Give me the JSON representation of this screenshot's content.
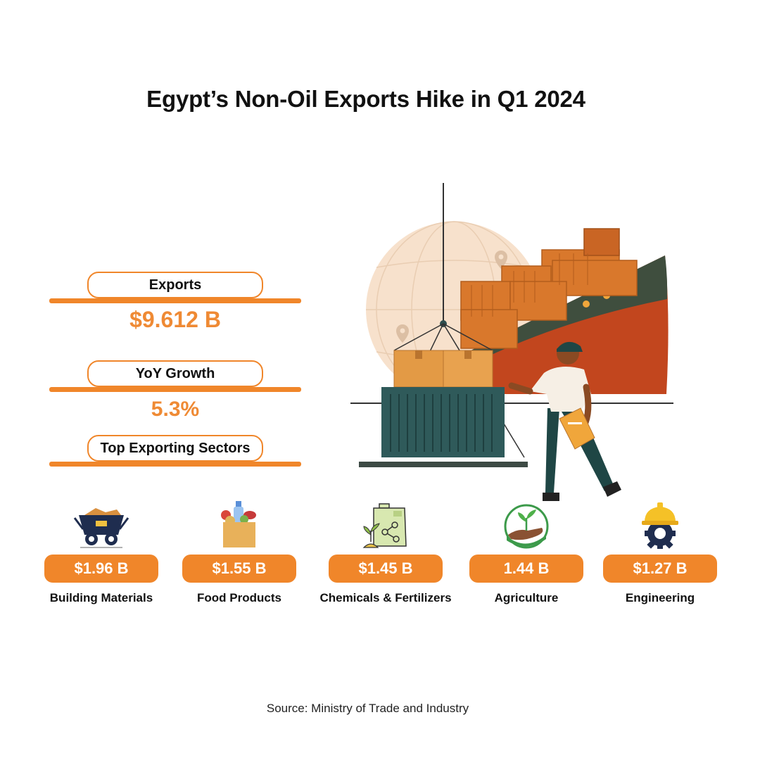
{
  "title": "Egypt’s Non-Oil Exports Hike in Q1 2024",
  "stats": {
    "exports_label": "Exports",
    "exports_value": "$9.612 B",
    "growth_label": "YoY Growth",
    "growth_value": "5.3%",
    "sectors_label": "Top Exporting Sectors"
  },
  "sectors": [
    {
      "value": "$1.96 B",
      "name": "Building Materials",
      "icon": "mine-cart-icon"
    },
    {
      "value": "$1.55 B",
      "name": "Food Products",
      "icon": "grocery-bag-icon"
    },
    {
      "value": "$1.45 B",
      "name": "Chemicals & Fertilizers",
      "icon": "fertilizer-canister-icon"
    },
    {
      "value": "1.44 B",
      "name": "Agriculture",
      "icon": "hand-sprout-icon"
    },
    {
      "value": "$1.27 B",
      "name": "Engineering",
      "icon": "hardhat-gear-icon"
    }
  ],
  "source": "Source: Ministry of Trade and Industry",
  "colors": {
    "accent": "#f0862a",
    "value_text": "#ef8a34",
    "ship_hull": "#c2461e",
    "container": "#2f5a5a"
  }
}
